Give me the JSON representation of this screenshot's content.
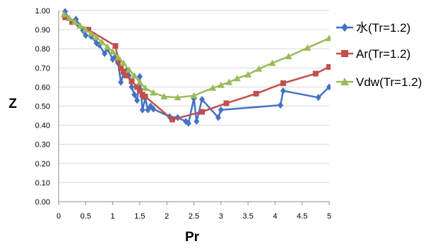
{
  "chart_data": {
    "type": "line",
    "title": "",
    "xlabel": "Pr",
    "ylabel": "Z",
    "xlim": [
      0,
      5
    ],
    "ylim": [
      0,
      1.0
    ],
    "x_ticks": [
      "0",
      "0.5",
      "1",
      "1.5",
      "2",
      "2.5",
      "3",
      "3.5",
      "4",
      "4.5",
      "5"
    ],
    "y_ticks": [
      "0.00",
      "0.10",
      "0.20",
      "0.30",
      "0.40",
      "0.50",
      "0.60",
      "0.70",
      "0.80",
      "0.90",
      "1.00"
    ],
    "grid": "horizontal",
    "legend_position": "right",
    "series": [
      {
        "name": "水(Tr=1.2)",
        "color": "#4472C4",
        "marker": "diamond",
        "points": [
          [
            0.12,
            0.995
          ],
          [
            0.15,
            0.965
          ],
          [
            0.25,
            0.94
          ],
          [
            0.32,
            0.955
          ],
          [
            0.35,
            0.93
          ],
          [
            0.45,
            0.895
          ],
          [
            0.5,
            0.87
          ],
          [
            0.6,
            0.865
          ],
          [
            0.7,
            0.83
          ],
          [
            0.75,
            0.82
          ],
          [
            0.85,
            0.775
          ],
          [
            0.9,
            0.8
          ],
          [
            1.0,
            0.745
          ],
          [
            1.05,
            0.76
          ],
          [
            1.1,
            0.725
          ],
          [
            1.15,
            0.625
          ],
          [
            1.2,
            0.67
          ],
          [
            1.25,
            0.685
          ],
          [
            1.3,
            0.66
          ],
          [
            1.35,
            0.6
          ],
          [
            1.4,
            0.56
          ],
          [
            1.45,
            0.53
          ],
          [
            1.5,
            0.655
          ],
          [
            1.55,
            0.48
          ],
          [
            1.6,
            0.54
          ],
          [
            1.65,
            0.48
          ],
          [
            1.7,
            0.5
          ],
          [
            1.75,
            0.485
          ],
          [
            2.05,
            0.445
          ],
          [
            2.2,
            0.44
          ],
          [
            2.35,
            0.42
          ],
          [
            2.4,
            0.41
          ],
          [
            2.5,
            0.54
          ],
          [
            2.55,
            0.42
          ],
          [
            2.65,
            0.535
          ],
          [
            2.95,
            0.44
          ],
          [
            3.0,
            0.48
          ],
          [
            4.1,
            0.505
          ],
          [
            4.15,
            0.58
          ],
          [
            4.8,
            0.545
          ],
          [
            5.0,
            0.6
          ]
        ]
      },
      {
        "name": "Ar(Tr=1.2)",
        "color": "#C0504D",
        "marker": "square",
        "points": [
          [
            0.12,
            0.965
          ],
          [
            0.25,
            0.94
          ],
          [
            0.55,
            0.9
          ],
          [
            1.05,
            0.815
          ],
          [
            1.1,
            0.74
          ],
          [
            1.15,
            0.7
          ],
          [
            1.2,
            0.68
          ],
          [
            1.25,
            0.66
          ],
          [
            1.35,
            0.63
          ],
          [
            1.45,
            0.6
          ],
          [
            1.5,
            0.58
          ],
          [
            1.55,
            0.56
          ],
          [
            1.6,
            0.55
          ],
          [
            2.1,
            0.43
          ],
          [
            2.65,
            0.47
          ],
          [
            3.1,
            0.515
          ],
          [
            3.65,
            0.565
          ],
          [
            4.15,
            0.62
          ],
          [
            4.75,
            0.67
          ],
          [
            5.0,
            0.705
          ]
        ]
      },
      {
        "name": "Vdw(Tr=1.2)",
        "color": "#9BBB59",
        "marker": "triangle",
        "points": [
          [
            0.1,
            0.98
          ],
          [
            0.2,
            0.96
          ],
          [
            0.3,
            0.94
          ],
          [
            0.4,
            0.92
          ],
          [
            0.5,
            0.9
          ],
          [
            0.6,
            0.88
          ],
          [
            0.7,
            0.86
          ],
          [
            0.8,
            0.835
          ],
          [
            0.9,
            0.81
          ],
          [
            1.0,
            0.785
          ],
          [
            1.1,
            0.755
          ],
          [
            1.2,
            0.725
          ],
          [
            1.3,
            0.69
          ],
          [
            1.4,
            0.66
          ],
          [
            1.5,
            0.625
          ],
          [
            1.6,
            0.595
          ],
          [
            1.75,
            0.57
          ],
          [
            1.95,
            0.55
          ],
          [
            2.2,
            0.545
          ],
          [
            2.5,
            0.555
          ],
          [
            2.85,
            0.595
          ],
          [
            3.0,
            0.61
          ],
          [
            3.15,
            0.625
          ],
          [
            3.3,
            0.645
          ],
          [
            3.5,
            0.665
          ],
          [
            3.7,
            0.695
          ],
          [
            3.95,
            0.725
          ],
          [
            4.25,
            0.76
          ],
          [
            4.6,
            0.805
          ],
          [
            5.0,
            0.855
          ]
        ]
      }
    ]
  }
}
